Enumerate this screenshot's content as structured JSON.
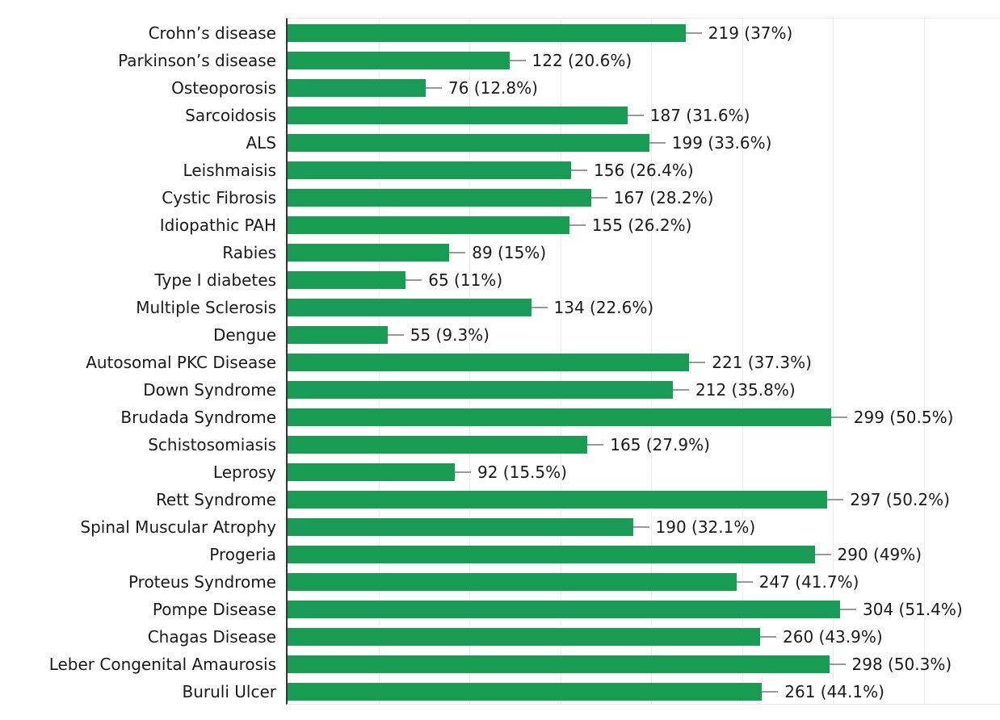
{
  "chart_data": {
    "type": "bar",
    "orientation": "horizontal",
    "title": "",
    "xlabel": "",
    "ylabel": "",
    "xlim": [
      0,
      392
    ],
    "gridline_interval": 50,
    "grid": true,
    "legend": false,
    "categories": [
      "Crohn’s disease",
      "Parkinson’s disease",
      "Osteoporosis",
      "Sarcoidosis",
      "ALS",
      "Leishmaisis",
      "Cystic Fibrosis",
      "Idiopathic PAH",
      "Rabies",
      "Type I diabetes",
      "Multiple Sclerosis",
      "Dengue",
      "Autosomal PKC Disease",
      "Down Syndrome",
      "Brudada Syndrome",
      "Schistosomiasis",
      "Leprosy",
      "Rett Syndrome",
      "Spinal Muscular Atrophy",
      "Progeria",
      "Proteus Syndrome",
      "Pompe Disease",
      "Chagas Disease",
      "Leber Congenital Amaurosis",
      "Buruli Ulcer"
    ],
    "values": [
      219,
      122,
      76,
      187,
      199,
      156,
      167,
      155,
      89,
      65,
      134,
      55,
      221,
      212,
      299,
      165,
      92,
      297,
      190,
      290,
      247,
      304,
      260,
      298,
      261
    ],
    "percentages": [
      37,
      20.6,
      12.8,
      31.6,
      33.6,
      26.4,
      28.2,
      26.2,
      15,
      11,
      22.6,
      9.3,
      37.3,
      35.8,
      50.5,
      27.9,
      15.5,
      50.2,
      32.1,
      49,
      41.7,
      51.4,
      43.9,
      50.3,
      44.1
    ],
    "data_labels": [
      "219 (37%)",
      "122 (20.6%)",
      "76 (12.8%)",
      "187 (31.6%)",
      "199 (33.6%)",
      "156 (26.4%)",
      "167 (28.2%)",
      "155 (26.2%)",
      "89 (15%)",
      "65 (11%)",
      "134 (22.6%)",
      "55 (9.3%)",
      "221 (37.3%)",
      "212 (35.8%)",
      "299 (50.5%)",
      "165 (27.9%)",
      "92 (15.5%)",
      "297 (50.2%)",
      "190 (32.1%)",
      "290 (49%)",
      "247 (41.7%)",
      "304 (51.4%)",
      "260 (43.9%)",
      "298 (50.3%)",
      "261 (44.1%)"
    ]
  },
  "colors": {
    "bar": "#189c53",
    "axis_line": "#343434",
    "gridline": "#ebebeb",
    "leader_line": "#999999",
    "text": "#1a1a1a",
    "background": "#ffffff"
  }
}
